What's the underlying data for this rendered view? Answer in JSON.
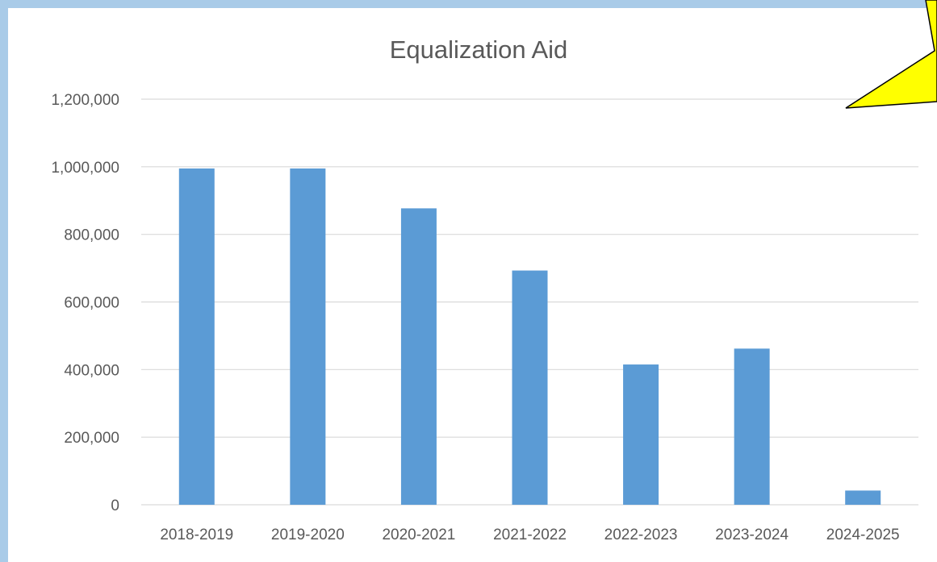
{
  "colors": {
    "frame": "#a9cbe8",
    "bar": "#5b9bd5",
    "gridline": "#d9d9d9",
    "text": "#595959",
    "callout_fill": "#ffff00",
    "callout_stroke": "#000000"
  },
  "chart_data": {
    "type": "bar",
    "title": "Equalization Aid",
    "xlabel": "",
    "ylabel": "",
    "categories": [
      "2018-2019",
      "2019-2020",
      "2020-2021",
      "2021-2022",
      "2022-2023",
      "2023-2024",
      "2024-2025"
    ],
    "series": [
      {
        "values": [
          995000,
          995000,
          877000,
          693000,
          415000,
          462000,
          42000
        ]
      }
    ],
    "ylim": [
      0,
      1200000
    ],
    "yticks": [
      0,
      200000,
      400000,
      600000,
      800000,
      1000000,
      1200000
    ],
    "ytick_labels": [
      "0",
      "200,000",
      "400,000",
      "600,000",
      "800,000",
      "1,000,000",
      "1,200,000"
    ],
    "grid": true,
    "legend": "none"
  }
}
